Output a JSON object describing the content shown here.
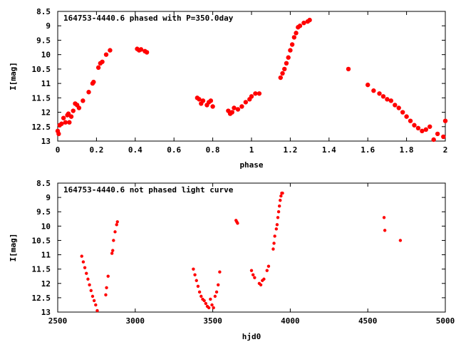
{
  "chart_data": [
    {
      "type": "scatter",
      "title": "164753-4440.6 phased with P=350.0day",
      "xlabel": "phase",
      "ylabel": "I[mag]",
      "xlim": [
        0,
        2
      ],
      "ylim": [
        13,
        8.5
      ],
      "y_inverted": true,
      "grid": false,
      "marker_color": "#ff0000",
      "xticks": [
        "0",
        "0.2",
        "0.4",
        "0.6",
        "0.8",
        "1",
        "1.2",
        "1.4",
        "1.6",
        "1.8",
        "2"
      ],
      "xtick_values": [
        0,
        0.2,
        0.4,
        0.6,
        0.8,
        1,
        1.2,
        1.4,
        1.6,
        1.8,
        2
      ],
      "yticks": [
        "8.5",
        "9",
        "9.5",
        "10",
        "10.5",
        "11",
        "11.5",
        "12",
        "12.5",
        "13"
      ],
      "ytick_values": [
        8.5,
        9,
        9.5,
        10,
        10.5,
        11,
        11.5,
        12,
        12.5,
        13
      ],
      "series": [
        {
          "points": [
            [
              0.0,
              12.65
            ],
            [
              0.005,
              12.75
            ],
            [
              0.01,
              12.45
            ],
            [
              0.02,
              12.4
            ],
            [
              0.03,
              12.2
            ],
            [
              0.04,
              12.35
            ],
            [
              0.05,
              12.1
            ],
            [
              0.055,
              12.05
            ],
            [
              0.06,
              12.35
            ],
            [
              0.07,
              12.15
            ],
            [
              0.08,
              11.95
            ],
            [
              0.09,
              11.7
            ],
            [
              0.1,
              11.75
            ],
            [
              0.11,
              11.85
            ],
            [
              0.13,
              11.6
            ],
            [
              0.16,
              11.3
            ],
            [
              0.18,
              11.0
            ],
            [
              0.185,
              10.95
            ],
            [
              0.21,
              10.45
            ],
            [
              0.22,
              10.3
            ],
            [
              0.23,
              10.25
            ],
            [
              0.25,
              10.0
            ],
            [
              0.27,
              9.85
            ],
            [
              0.41,
              9.8
            ],
            [
              0.42,
              9.85
            ],
            [
              0.43,
              9.82
            ],
            [
              0.45,
              9.88
            ],
            [
              0.46,
              9.92
            ],
            [
              0.72,
              11.5
            ],
            [
              0.73,
              11.55
            ],
            [
              0.74,
              11.7
            ],
            [
              0.75,
              11.6
            ],
            [
              0.77,
              11.75
            ],
            [
              0.78,
              11.65
            ],
            [
              0.79,
              11.6
            ],
            [
              0.8,
              11.8
            ],
            [
              0.88,
              11.95
            ],
            [
              0.89,
              12.05
            ],
            [
              0.9,
              12.0
            ],
            [
              0.91,
              11.85
            ],
            [
              0.93,
              11.9
            ],
            [
              0.95,
              11.8
            ],
            [
              0.97,
              11.65
            ],
            [
              0.99,
              11.55
            ],
            [
              1.0,
              11.45
            ],
            [
              1.02,
              11.35
            ],
            [
              1.04,
              11.35
            ],
            [
              1.15,
              10.8
            ],
            [
              1.16,
              10.65
            ],
            [
              1.17,
              10.5
            ],
            [
              1.18,
              10.3
            ],
            [
              1.19,
              10.1
            ],
            [
              1.2,
              9.85
            ],
            [
              1.21,
              9.65
            ],
            [
              1.22,
              9.4
            ],
            [
              1.23,
              9.25
            ],
            [
              1.24,
              9.05
            ],
            [
              1.25,
              9.0
            ],
            [
              1.27,
              8.9
            ],
            [
              1.29,
              8.85
            ],
            [
              1.3,
              8.8
            ],
            [
              1.5,
              10.5
            ],
            [
              1.6,
              11.05
            ],
            [
              1.63,
              11.25
            ],
            [
              1.66,
              11.35
            ],
            [
              1.68,
              11.45
            ],
            [
              1.7,
              11.55
            ],
            [
              1.72,
              11.6
            ],
            [
              1.74,
              11.75
            ],
            [
              1.76,
              11.85
            ],
            [
              1.78,
              12.0
            ],
            [
              1.8,
              12.15
            ],
            [
              1.82,
              12.3
            ],
            [
              1.84,
              12.45
            ],
            [
              1.86,
              12.55
            ],
            [
              1.88,
              12.65
            ],
            [
              1.9,
              12.6
            ],
            [
              1.92,
              12.5
            ],
            [
              1.94,
              12.95
            ],
            [
              1.96,
              12.75
            ],
            [
              1.99,
              12.85
            ],
            [
              2.0,
              12.3
            ]
          ]
        }
      ]
    },
    {
      "type": "scatter",
      "title": "164753-4440.6 not phased light curve",
      "xlabel": "hjd0",
      "ylabel": "I[mag]",
      "xlim": [
        2500,
        5000
      ],
      "ylim": [
        13,
        8.5
      ],
      "y_inverted": true,
      "grid": false,
      "marker_color": "#ff0000",
      "xticks": [
        "2500",
        "3000",
        "3500",
        "4000",
        "4500",
        "5000"
      ],
      "xtick_values": [
        2500,
        3000,
        3500,
        4000,
        4500,
        5000
      ],
      "yticks": [
        "8.5",
        "9",
        "9.5",
        "10",
        "10.5",
        "11",
        "11.5",
        "12",
        "12.5",
        "13"
      ],
      "ytick_values": [
        8.5,
        9,
        9.5,
        10,
        10.5,
        11,
        11.5,
        12,
        12.5,
        13
      ],
      "series": [
        {
          "points": [
            [
              2655,
              11.05
            ],
            [
              2665,
              11.25
            ],
            [
              2675,
              11.45
            ],
            [
              2685,
              11.65
            ],
            [
              2695,
              11.85
            ],
            [
              2705,
              12.05
            ],
            [
              2715,
              12.25
            ],
            [
              2725,
              12.45
            ],
            [
              2735,
              12.6
            ],
            [
              2745,
              12.75
            ],
            [
              2755,
              12.95
            ],
            [
              2810,
              12.4
            ],
            [
              2815,
              12.15
            ],
            [
              2825,
              11.75
            ],
            [
              2850,
              10.95
            ],
            [
              2855,
              10.85
            ],
            [
              2860,
              10.5
            ],
            [
              2870,
              10.2
            ],
            [
              2880,
              9.95
            ],
            [
              2885,
              9.85
            ],
            [
              3375,
              11.5
            ],
            [
              3385,
              11.7
            ],
            [
              3395,
              11.9
            ],
            [
              3405,
              12.1
            ],
            [
              3415,
              12.3
            ],
            [
              3425,
              12.45
            ],
            [
              3435,
              12.55
            ],
            [
              3445,
              12.6
            ],
            [
              3455,
              12.7
            ],
            [
              3465,
              12.8
            ],
            [
              3475,
              12.85
            ],
            [
              3485,
              12.55
            ],
            [
              3495,
              12.75
            ],
            [
              3505,
              12.85
            ],
            [
              3515,
              12.45
            ],
            [
              3525,
              12.3
            ],
            [
              3535,
              12.05
            ],
            [
              3545,
              11.6
            ],
            [
              3650,
              9.8
            ],
            [
              3655,
              9.85
            ],
            [
              3660,
              9.9
            ],
            [
              3750,
              11.55
            ],
            [
              3760,
              11.7
            ],
            [
              3770,
              11.8
            ],
            [
              3800,
              12.0
            ],
            [
              3810,
              12.05
            ],
            [
              3820,
              11.9
            ],
            [
              3830,
              11.85
            ],
            [
              3850,
              11.55
            ],
            [
              3860,
              11.4
            ],
            [
              3890,
              10.8
            ],
            [
              3895,
              10.6
            ],
            [
              3900,
              10.35
            ],
            [
              3910,
              10.1
            ],
            [
              3915,
              9.95
            ],
            [
              3920,
              9.7
            ],
            [
              3925,
              9.5
            ],
            [
              3930,
              9.3
            ],
            [
              3935,
              9.1
            ],
            [
              3940,
              8.95
            ],
            [
              3945,
              8.85
            ],
            [
              3950,
              8.85
            ],
            [
              4605,
              9.7
            ],
            [
              4610,
              10.15
            ],
            [
              4710,
              10.5
            ]
          ]
        }
      ]
    }
  ]
}
